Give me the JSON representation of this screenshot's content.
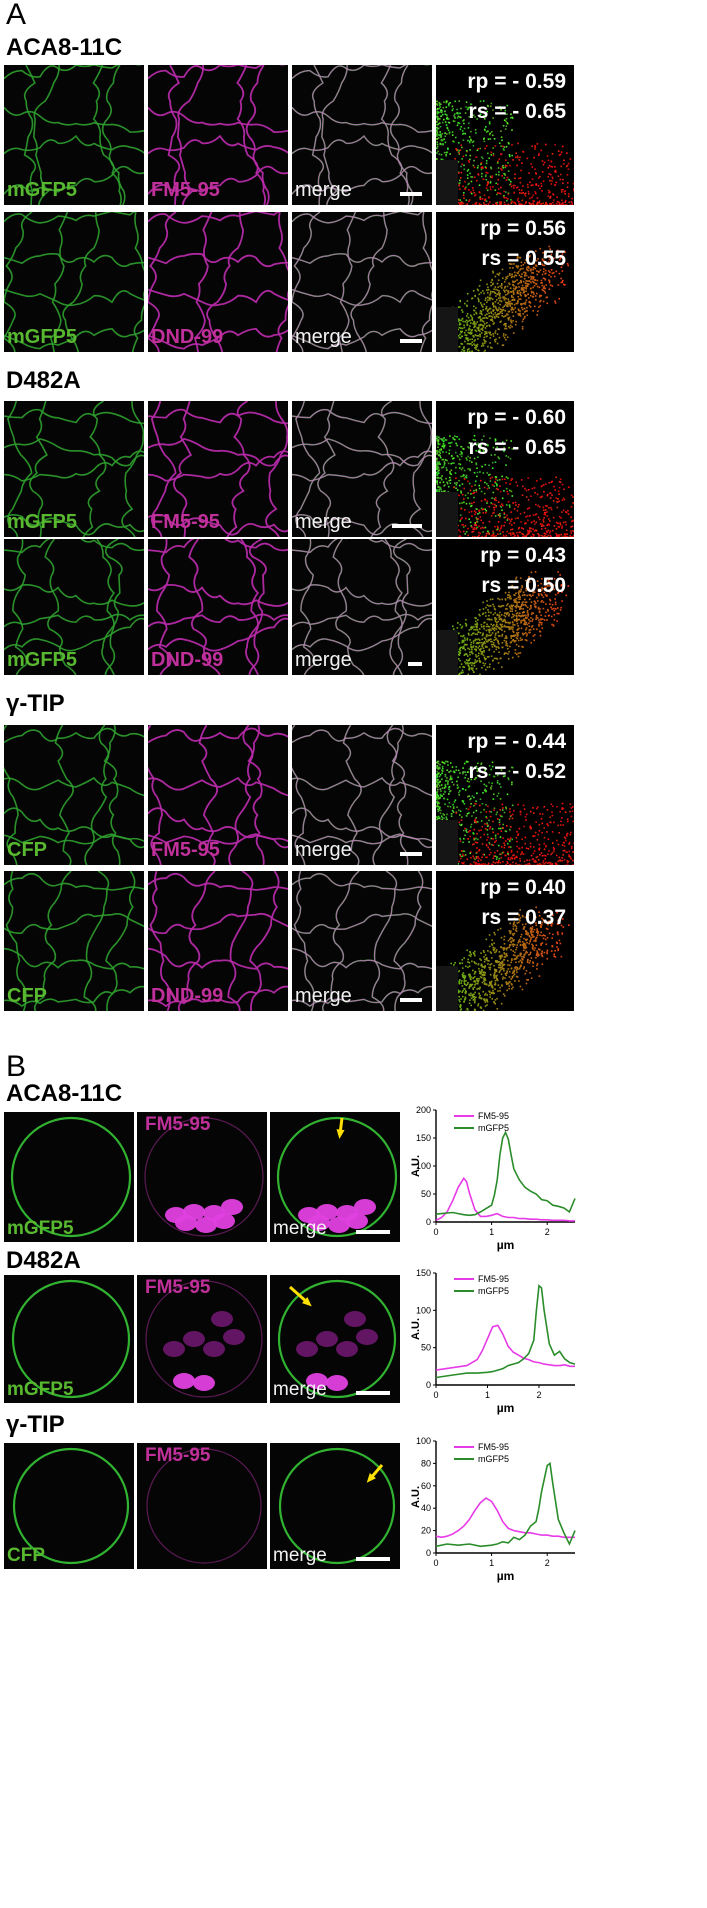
{
  "panel_a": {
    "letter": "A",
    "groups": [
      {
        "title": "ACA8-11C",
        "rows": [
          {
            "labels": [
              "mGFP5",
              "FM5-95",
              "merge"
            ],
            "rp": "rp = - 0.59",
            "rs": "rs = - 0.65"
          },
          {
            "labels": [
              "mGFP5",
              "DND-99",
              "merge"
            ],
            "rp": "rp = 0.56",
            "rs": "rs = 0.55"
          }
        ]
      },
      {
        "title": "D482A",
        "rows": [
          {
            "labels": [
              "mGFP5",
              "FM5-95",
              "merge"
            ],
            "rp": "rp = - 0.60",
            "rs": "rs = - 0.65"
          },
          {
            "labels": [
              "mGFP5",
              "DND-99",
              "merge"
            ],
            "rp": "rp = 0.43",
            "rs": "rs = 0.50"
          }
        ]
      },
      {
        "title": "γ-TIP",
        "rows": [
          {
            "labels": [
              "CFP",
              "FM5-95",
              "merge"
            ],
            "rp": "rp = - 0.44",
            "rs": "rs = - 0.52"
          },
          {
            "labels": [
              "CFP",
              "DND-99",
              "merge"
            ],
            "rp": "rp = 0.40",
            "rs": "rs = 0.37"
          }
        ]
      }
    ]
  },
  "panel_b": {
    "letter": "B",
    "groups": [
      {
        "title": "ACA8-11C",
        "labels": [
          "mGFP5",
          "FM5-95",
          "merge"
        ]
      },
      {
        "title": "D482A",
        "labels": [
          "mGFP5",
          "FM5-95",
          "merge"
        ]
      },
      {
        "title": "γ-TIP",
        "labels": [
          "CFP",
          "FM5-95",
          "merge"
        ]
      }
    ]
  },
  "colors": {
    "green": "#2db82d",
    "magenta": "#e83be8",
    "label_green": "#58b830",
    "label_magenta": "#c0309a",
    "arrow": "#ffe000"
  },
  "chart_data": [
    {
      "type": "line",
      "xlabel": "µm",
      "ylabel": "A.U.",
      "xlim": [
        0,
        2.5
      ],
      "ylim": [
        0,
        200
      ],
      "xticks": [
        0,
        1,
        2
      ],
      "yticks": [
        0,
        50,
        100,
        150,
        200
      ],
      "series": [
        {
          "name": "FM5-95",
          "color": "#e83be8",
          "x": [
            0,
            0.1,
            0.2,
            0.3,
            0.4,
            0.5,
            0.55,
            0.6,
            0.7,
            0.8,
            0.9,
            1.0,
            1.1,
            1.2,
            1.3,
            1.4,
            1.5,
            1.6,
            1.7,
            1.8,
            1.9,
            2.0,
            2.1,
            2.2,
            2.3,
            2.4,
            2.5
          ],
          "y": [
            3,
            8,
            18,
            38,
            62,
            78,
            72,
            52,
            22,
            10,
            10,
            12,
            15,
            10,
            8,
            8,
            6,
            6,
            5,
            5,
            4,
            4,
            3,
            3,
            3,
            2,
            2
          ]
        },
        {
          "name": "mGFP5",
          "color": "#2a8c2a",
          "x": [
            0,
            0.1,
            0.2,
            0.3,
            0.4,
            0.5,
            0.6,
            0.7,
            0.8,
            0.9,
            1.0,
            1.05,
            1.1,
            1.15,
            1.2,
            1.25,
            1.3,
            1.35,
            1.4,
            1.5,
            1.6,
            1.7,
            1.8,
            1.9,
            2.0,
            2.1,
            2.2,
            2.3,
            2.4,
            2.5
          ],
          "y": [
            14,
            15,
            16,
            17,
            15,
            13,
            12,
            13,
            18,
            24,
            30,
            48,
            75,
            120,
            150,
            160,
            148,
            120,
            95,
            75,
            62,
            55,
            50,
            40,
            38,
            30,
            28,
            25,
            18,
            42
          ]
        }
      ]
    },
    {
      "type": "line",
      "xlabel": "µm",
      "ylabel": "A.U.",
      "xlim": [
        0,
        2.7
      ],
      "ylim": [
        0,
        150
      ],
      "xticks": [
        0,
        1,
        2
      ],
      "yticks": [
        0,
        50,
        100,
        150
      ],
      "series": [
        {
          "name": "FM5-95",
          "color": "#e83be8",
          "x": [
            0,
            0.2,
            0.4,
            0.6,
            0.8,
            0.9,
            1.0,
            1.1,
            1.2,
            1.3,
            1.4,
            1.5,
            1.6,
            1.7,
            1.8,
            1.9,
            2.0,
            2.1,
            2.2,
            2.3,
            2.4,
            2.5,
            2.6,
            2.7
          ],
          "y": [
            20,
            22,
            24,
            26,
            34,
            46,
            62,
            78,
            80,
            68,
            52,
            44,
            40,
            36,
            34,
            31,
            30,
            28,
            27,
            26,
            26,
            27,
            25,
            25
          ]
        },
        {
          "name": "mGFP5",
          "color": "#2a8c2a",
          "x": [
            0,
            0.2,
            0.4,
            0.6,
            0.8,
            1.0,
            1.1,
            1.2,
            1.3,
            1.4,
            1.5,
            1.6,
            1.7,
            1.8,
            1.9,
            1.95,
            2.0,
            2.05,
            2.1,
            2.2,
            2.3,
            2.4,
            2.5,
            2.6,
            2.7
          ],
          "y": [
            10,
            12,
            14,
            16,
            16,
            17,
            18,
            20,
            22,
            26,
            28,
            30,
            35,
            42,
            60,
            100,
            133,
            130,
            100,
            55,
            40,
            45,
            35,
            30,
            28
          ]
        }
      ]
    },
    {
      "type": "line",
      "xlabel": "µm",
      "ylabel": "A.U.",
      "xlim": [
        0,
        2.5
      ],
      "ylim": [
        0,
        100
      ],
      "xticks": [
        0,
        1,
        2
      ],
      "yticks": [
        0,
        20,
        40,
        60,
        80,
        100
      ],
      "series": [
        {
          "name": "FM5-95",
          "color": "#e83be8",
          "x": [
            0,
            0.1,
            0.2,
            0.3,
            0.4,
            0.5,
            0.6,
            0.7,
            0.8,
            0.9,
            1.0,
            1.1,
            1.2,
            1.3,
            1.4,
            1.5,
            1.6,
            1.7,
            1.8,
            1.9,
            2.0,
            2.1,
            2.2,
            2.3,
            2.4,
            2.5
          ],
          "y": [
            15,
            14,
            15,
            17,
            20,
            24,
            30,
            38,
            45,
            49,
            46,
            38,
            28,
            22,
            20,
            19,
            18,
            18,
            17,
            16,
            16,
            15,
            15,
            14,
            14,
            14
          ]
        },
        {
          "name": "mGFP5",
          "color": "#2a8c2a",
          "x": [
            0,
            0.2,
            0.4,
            0.6,
            0.8,
            1.0,
            1.1,
            1.2,
            1.3,
            1.4,
            1.5,
            1.6,
            1.7,
            1.8,
            1.85,
            1.9,
            2.0,
            2.05,
            2.1,
            2.2,
            2.3,
            2.4,
            2.5
          ],
          "y": [
            6,
            8,
            7,
            8,
            6,
            7,
            8,
            10,
            9,
            14,
            12,
            16,
            24,
            28,
            40,
            55,
            78,
            80,
            62,
            30,
            18,
            8,
            20
          ]
        }
      ]
    }
  ]
}
